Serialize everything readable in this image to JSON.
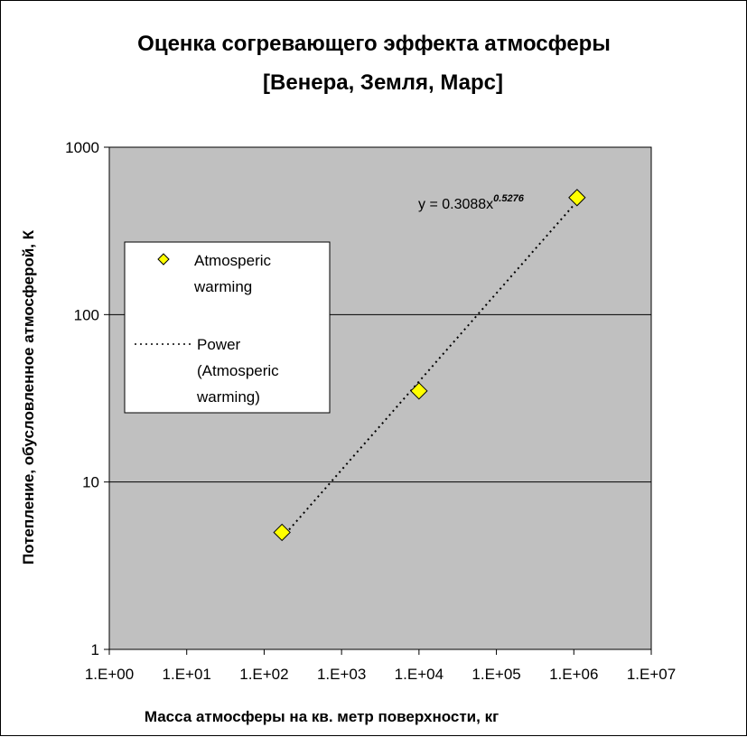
{
  "chart_data": {
    "type": "scatter",
    "title_lines": [
      "Оценка согревающего эффекта атмосферы",
      "[Венера, Земля, Марс]"
    ],
    "xlabel": "Масса атмосферы на кв. метр поверхности, кг",
    "ylabel": "Потепление, обусловленное атмосферой, К",
    "x_scale": "log",
    "y_scale": "log",
    "xlim": [
      1,
      10000000
    ],
    "ylim": [
      1,
      1000
    ],
    "x_ticks": [
      1,
      10,
      100,
      1000,
      10000,
      100000,
      1000000,
      10000000
    ],
    "x_tick_labels": [
      "1.E+00",
      "1.E+01",
      "1.E+02",
      "1.E+03",
      "1.E+04",
      "1.E+05",
      "1.E+06",
      "1.E+07"
    ],
    "y_ticks": [
      1,
      10,
      100,
      1000
    ],
    "y_tick_labels": [
      "1",
      "10",
      "100",
      "1000"
    ],
    "grid": "horizontal major",
    "plot_background": "#c0c0c0",
    "series": [
      {
        "name": "Atmosperic warming",
        "marker": "diamond",
        "color": "#ffff00",
        "edge_color": "#000000",
        "x": [
          170,
          10000,
          1100000
        ],
        "y": [
          5,
          35,
          500
        ]
      }
    ],
    "trendline": {
      "name": "Power (Atmosperic warming)",
      "type": "power",
      "style": "dotted",
      "color": "#000000",
      "coefficient": 0.3088,
      "exponent": 0.5276,
      "x_range": [
        170,
        1100000
      ],
      "equation_prefix": "y = 0.3088x",
      "equation_exponent": "0.5276"
    },
    "legend": {
      "placement": "left",
      "entries": [
        {
          "lines": [
            "Atmosperic",
            "warming"
          ],
          "symbol": "diamond"
        },
        {
          "lines": [
            "Power",
            "(Atmosperic",
            "warming)"
          ],
          "symbol": "dotted-line"
        }
      ]
    }
  }
}
